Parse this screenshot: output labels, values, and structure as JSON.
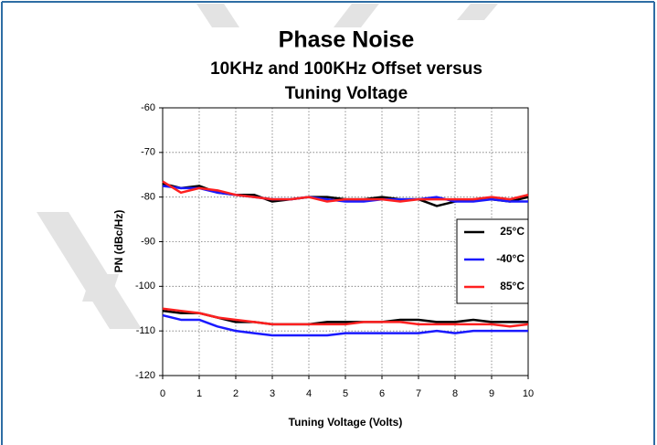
{
  "chart_data": {
    "type": "line",
    "title": "Phase Noise",
    "subtitle": [
      "10KHz and 100KHz Offset versus",
      "Tuning Voltage"
    ],
    "x_label": "Tuning Voltage (Volts)",
    "y_label": "PN (dBc/Hz)",
    "x": [
      0,
      0.5,
      1,
      1.5,
      2,
      2.5,
      3,
      3.5,
      4,
      4.5,
      5,
      5.5,
      6,
      6.5,
      7,
      7.5,
      8,
      8.5,
      9,
      9.5,
      10
    ],
    "series": [
      {
        "name": "25°C",
        "color": "#000000",
        "curves": [
          [
            -77,
            -78,
            -77.5,
            -79,
            -79.5,
            -79.5,
            -81,
            -80.5,
            -80,
            -80,
            -80.5,
            -80.5,
            -80,
            -80.5,
            -80.5,
            -82,
            -81,
            -80.5,
            -80.5,
            -81,
            -80
          ],
          [
            -105.5,
            -106,
            -106,
            -107,
            -108,
            -108,
            -108.5,
            -108.5,
            -108.5,
            -108,
            -108,
            -108,
            -108,
            -107.5,
            -107.5,
            -108,
            -108,
            -107.5,
            -108,
            -108,
            -108
          ]
        ]
      },
      {
        "name": "-40°C",
        "color": "#1a1aff",
        "curves": [
          [
            -77.5,
            -78,
            -78,
            -79,
            -79.5,
            -80,
            -80.5,
            -80.5,
            -80,
            -80.5,
            -81,
            -81,
            -80.5,
            -80.5,
            -80.5,
            -80,
            -81,
            -81,
            -80.5,
            -81,
            -81
          ],
          [
            -106.5,
            -107.5,
            -107.5,
            -109,
            -110,
            -110.5,
            -111,
            -111,
            -111,
            -111,
            -110.5,
            -110.5,
            -110.5,
            -110.5,
            -110.5,
            -110,
            -110.5,
            -110,
            -110,
            -110,
            -110
          ]
        ]
      },
      {
        "name": "85°C",
        "color": "#ff2020",
        "curves": [
          [
            -76.5,
            -79,
            -78,
            -78.5,
            -79.5,
            -80,
            -80.5,
            -80.5,
            -80,
            -81,
            -80.5,
            -80.5,
            -80.5,
            -81,
            -80.5,
            -80.5,
            -80.5,
            -80.5,
            -80,
            -80.5,
            -79.5
          ],
          [
            -105,
            -105.5,
            -106,
            -107,
            -107.5,
            -108,
            -108.5,
            -108.5,
            -108.5,
            -108.5,
            -108.5,
            -108,
            -108,
            -108,
            -108.5,
            -108.5,
            -108.5,
            -108.5,
            -108.5,
            -109,
            -108.5
          ]
        ]
      }
    ],
    "xlim": [
      0,
      10
    ],
    "xticks": [
      0,
      1,
      2,
      3,
      4,
      5,
      6,
      7,
      8,
      9,
      10
    ],
    "ylim": [
      -120,
      -60
    ],
    "yticks": [
      -120,
      -110,
      -100,
      -90,
      -80,
      -70,
      -60
    ],
    "grid": true,
    "legend": "right"
  }
}
